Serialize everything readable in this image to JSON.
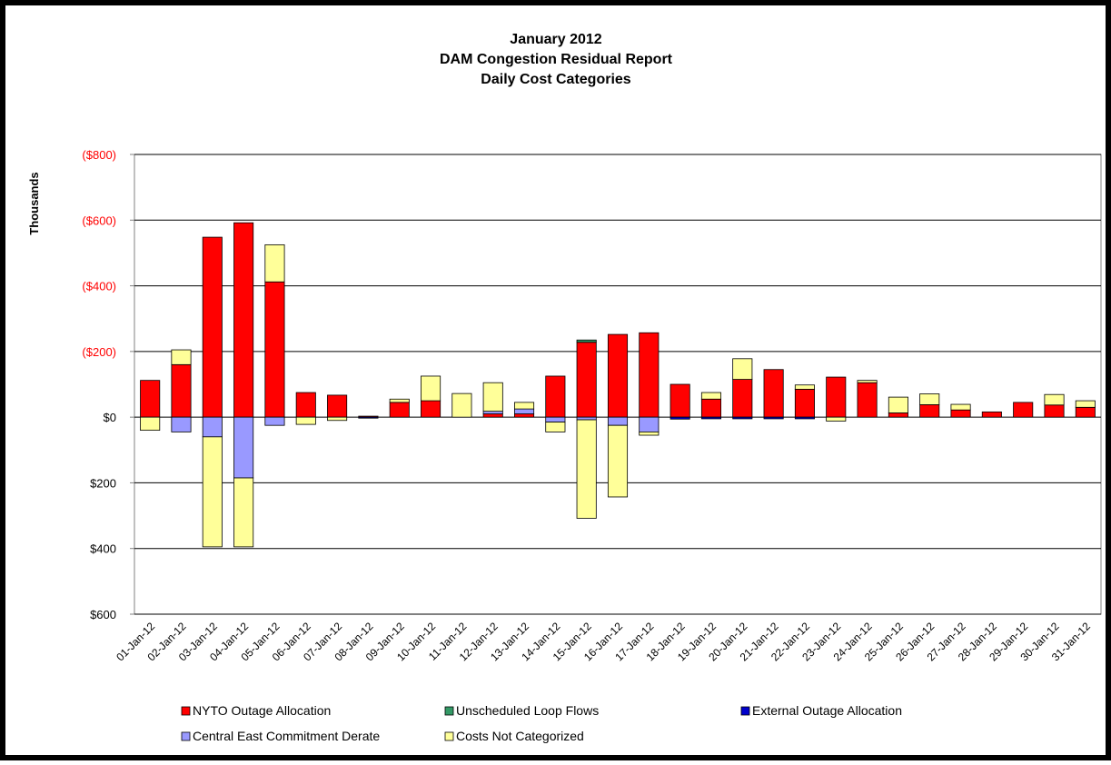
{
  "chart_data": {
    "type": "stacked_bar",
    "title": [
      "January 2012",
      "DAM Congestion Residual Report",
      "Daily Cost Categories"
    ],
    "ylabel": "Thousands",
    "categories": [
      "01-Jan-12",
      "02-Jan-12",
      "03-Jan-12",
      "04-Jan-12",
      "05-Jan-12",
      "06-Jan-12",
      "07-Jan-12",
      "08-Jan-12",
      "09-Jan-12",
      "10-Jan-12",
      "11-Jan-12",
      "12-Jan-12",
      "13-Jan-12",
      "14-Jan-12",
      "15-Jan-12",
      "16-Jan-12",
      "17-Jan-12",
      "18-Jan-12",
      "19-Jan-12",
      "20-Jan-12",
      "21-Jan-12",
      "22-Jan-12",
      "23-Jan-12",
      "24-Jan-12",
      "25-Jan-12",
      "26-Jan-12",
      "27-Jan-12",
      "28-Jan-12",
      "29-Jan-12",
      "30-Jan-12",
      "31-Jan-12"
    ],
    "series": [
      {
        "name": "NYTO  Outage Allocation",
        "color": "#ff0000",
        "values": [
          -112,
          -160,
          -548,
          -592,
          -412,
          -75,
          -67,
          -3,
          -45,
          -50,
          0,
          -10,
          -10,
          -125,
          -228,
          -252,
          -257,
          -100,
          -55,
          -115,
          -145,
          -85,
          -122,
          -105,
          -13,
          -38,
          -22,
          -16,
          -45,
          -37,
          -30
        ]
      },
      {
        "name": "Unscheduled Loop Flows",
        "color": "#339966",
        "values": [
          0,
          0,
          0,
          0,
          0,
          0,
          0,
          0,
          0,
          0,
          0,
          0,
          0,
          0,
          -7,
          0,
          0,
          0,
          0,
          0,
          0,
          0,
          0,
          0,
          0,
          0,
          0,
          0,
          0,
          0,
          0
        ]
      },
      {
        "name": "External Outage Allocation",
        "color": "#0000cc",
        "values": [
          0,
          0,
          0,
          0,
          0,
          0,
          0,
          3,
          0,
          0,
          0,
          0,
          0,
          0,
          0,
          0,
          0,
          6,
          5,
          5,
          5,
          5,
          0,
          0,
          0,
          0,
          0,
          0,
          0,
          0,
          0
        ]
      },
      {
        "name": "Central East Commitment Derate",
        "color": "#9999ff",
        "values": [
          0,
          45,
          60,
          185,
          25,
          0,
          0,
          0,
          0,
          0,
          0,
          -8,
          -15,
          15,
          8,
          25,
          45,
          0,
          0,
          0,
          0,
          0,
          0,
          0,
          0,
          0,
          0,
          0,
          0,
          0,
          0
        ]
      },
      {
        "name": "Costs Not Categorized",
        "color": "#ffff99",
        "values": [
          40,
          -45,
          335,
          210,
          -113,
          22,
          10,
          0,
          -10,
          -75,
          -72,
          -87,
          -20,
          30,
          300,
          218,
          10,
          0,
          -20,
          -63,
          0,
          -13,
          12,
          -7,
          -48,
          -33,
          -17,
          0,
          0,
          -32,
          -20
        ]
      }
    ],
    "ylim": [
      -800,
      600
    ],
    "y_reversed": true,
    "yticks": [
      {
        "value": -800,
        "label": "($800)"
      },
      {
        "value": -600,
        "label": "($600)"
      },
      {
        "value": -400,
        "label": "($400)"
      },
      {
        "value": -200,
        "label": "($200)"
      },
      {
        "value": 0,
        "label": "$0"
      },
      {
        "value": 200,
        "label": "$200"
      },
      {
        "value": 400,
        "label": "$400"
      },
      {
        "value": 600,
        "label": "$600"
      }
    ],
    "negative_tick_color": "#ff0000",
    "grid": true,
    "legend": "bottom"
  }
}
